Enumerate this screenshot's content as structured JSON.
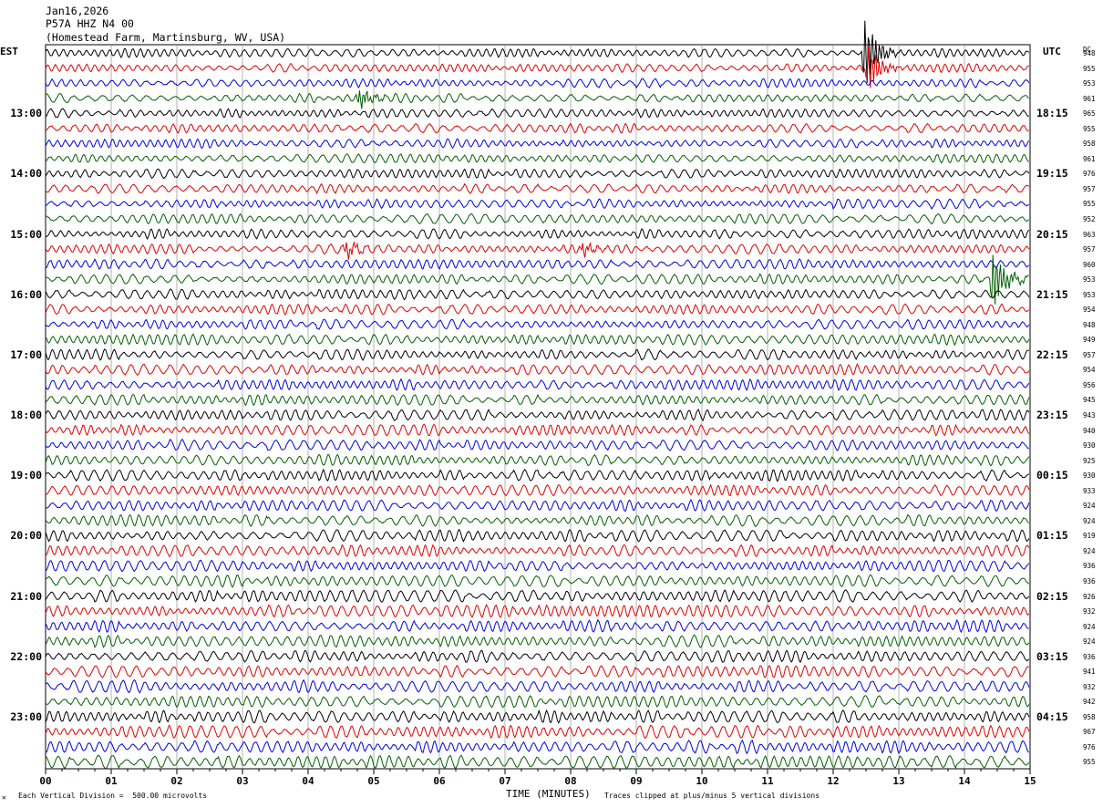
{
  "header": {
    "date": "Jan16,2026",
    "station": "P57A HHZ N4 00",
    "location": "(Homestead Farm, Martinsburg, WV, USA)"
  },
  "left_tz": "EST",
  "right_tz": "UTC",
  "dc_header": "DC",
  "left_hours": [
    "13:00",
    "14:00",
    "15:00",
    "16:00",
    "17:00",
    "18:00",
    "19:00",
    "20:00",
    "21:00",
    "22:00",
    "23:00"
  ],
  "right_hours": [
    "18:15",
    "19:15",
    "20:15",
    "21:15",
    "22:15",
    "23:15",
    "00:15",
    "01:15",
    "02:15",
    "03:15",
    "04:15"
  ],
  "footer": {
    "scale": "Each Vertical Division =  500.00 microvolts",
    "xlabel": "TIME (MINUTES)",
    "clip": "Traces clipped at plus/minus 5 vertical divisions"
  },
  "colors": {
    "trace_cycle": [
      "#000000",
      "#e00000",
      "#0000e0",
      "#006000"
    ],
    "grid": "#808080"
  },
  "chart_data": {
    "type": "line",
    "title": "P57A HHZ N4 00",
    "xlabel": "TIME (MINUTES)",
    "x_ticks": [
      "00",
      "01",
      "02",
      "03",
      "04",
      "05",
      "06",
      "07",
      "08",
      "09",
      "10",
      "11",
      "12",
      "13",
      "14",
      "15"
    ],
    "xlim": [
      0,
      15
    ],
    "trace_count": 48,
    "dc_offsets": [
      948,
      955,
      953,
      961,
      965,
      955,
      958,
      961,
      976,
      957,
      955,
      952,
      963,
      957,
      960,
      953,
      953,
      954,
      948,
      949,
      957,
      954,
      956,
      945,
      943,
      940,
      930,
      925,
      930,
      933,
      924,
      924,
      919,
      924,
      936,
      936,
      926,
      932,
      924,
      924,
      936,
      941,
      932,
      942,
      958,
      967,
      976,
      955
    ],
    "events": [
      {
        "trace": 0,
        "minute": 12.5,
        "amp": 2.2
      },
      {
        "trace": 1,
        "minute": 12.55,
        "amp": 1.4
      },
      {
        "trace": 3,
        "minute": 4.8,
        "amp": 0.6
      },
      {
        "trace": 13,
        "minute": 4.6,
        "amp": 0.5
      },
      {
        "trace": 13,
        "minute": 8.2,
        "amp": 0.4
      },
      {
        "trace": 15,
        "minute": 14.45,
        "amp": 1.8
      }
    ]
  }
}
